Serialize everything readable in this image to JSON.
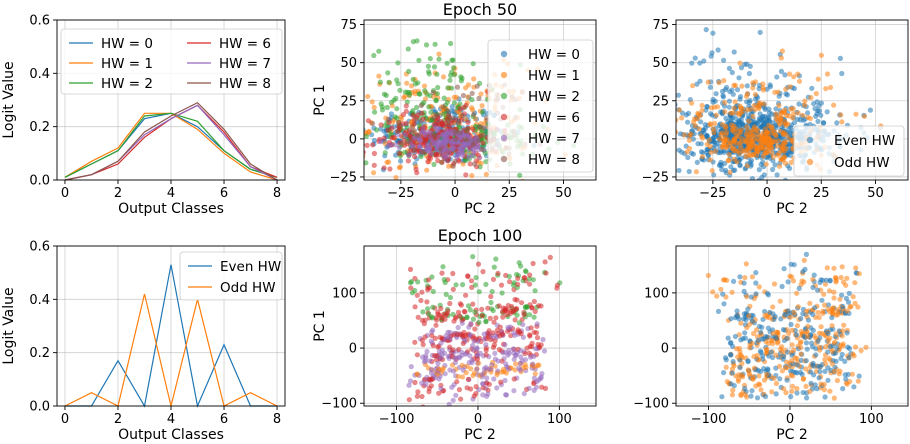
{
  "colors": {
    "hw0": "#1f77b4",
    "hw1": "#ff7f0e",
    "hw2": "#2ca02c",
    "hw6": "#d62728",
    "hw7": "#9467bd",
    "hw8": "#8c564b",
    "even": "#1f77b4",
    "odd": "#ff7f0e"
  },
  "chart_data": [
    {
      "id": "tl",
      "type": "line",
      "title": "",
      "xlabel": "Output Classes",
      "ylabel": "Logit Value",
      "xlim": [
        -0.3,
        8.3
      ],
      "ylim": [
        0,
        0.6
      ],
      "xticks": [
        0,
        2,
        4,
        6,
        8
      ],
      "xtick_labels": [
        "0",
        "2",
        "4",
        "6",
        "8"
      ],
      "yticks": [
        0,
        0.2,
        0.4,
        0.6
      ],
      "ytick_labels": [
        "0.0",
        "0.2",
        "0.4",
        "0.6"
      ],
      "grid": true,
      "legend": "top",
      "legend_columns": 2,
      "x": [
        0,
        1,
        2,
        3,
        4,
        5,
        6,
        7,
        8
      ],
      "series": [
        {
          "name": "HW = 0",
          "color_key": "hw0",
          "values": [
            0.01,
            0.06,
            0.11,
            0.23,
            0.25,
            0.2,
            0.11,
            0.04,
            0.01
          ]
        },
        {
          "name": "HW = 1",
          "color_key": "hw1",
          "values": [
            0.01,
            0.07,
            0.12,
            0.25,
            0.25,
            0.19,
            0.1,
            0.03,
            0.0
          ]
        },
        {
          "name": "HW = 2",
          "color_key": "hw2",
          "values": [
            0.01,
            0.06,
            0.11,
            0.24,
            0.25,
            0.22,
            0.11,
            0.04,
            0.01
          ]
        },
        {
          "name": "HW = 6",
          "color_key": "hw6",
          "values": [
            0.0,
            0.02,
            0.06,
            0.16,
            0.23,
            0.28,
            0.18,
            0.05,
            0.01
          ]
        },
        {
          "name": "HW = 7",
          "color_key": "hw7",
          "values": [
            0.0,
            0.02,
            0.07,
            0.17,
            0.23,
            0.28,
            0.17,
            0.05,
            0.0
          ]
        },
        {
          "name": "HW = 8",
          "color_key": "hw8",
          "values": [
            0.0,
            0.02,
            0.07,
            0.18,
            0.24,
            0.29,
            0.19,
            0.06,
            0.0
          ]
        }
      ]
    },
    {
      "id": "tm",
      "type": "scatter",
      "title": "Epoch 50",
      "xlabel": "PC 2",
      "ylabel": "PC 1",
      "xlim": [
        -42,
        65
      ],
      "ylim": [
        -27,
        78
      ],
      "xticks": [
        -25,
        0,
        25,
        50
      ],
      "xtick_labels": [
        "−25",
        "0",
        "25",
        "50"
      ],
      "yticks": [
        -25,
        0,
        25,
        50,
        75
      ],
      "ytick_labels": [
        "−25",
        "0",
        "25",
        "50",
        "75"
      ],
      "grid": true,
      "legend": "right",
      "series": [
        {
          "name": "HW = 0",
          "color_key": "hw0"
        },
        {
          "name": "HW = 1",
          "color_key": "hw1"
        },
        {
          "name": "HW = 2",
          "color_key": "hw2"
        },
        {
          "name": "HW = 6",
          "color_key": "hw6"
        },
        {
          "name": "HW = 7",
          "color_key": "hw7"
        },
        {
          "name": "HW = 8",
          "color_key": "hw8"
        }
      ]
    },
    {
      "id": "tr",
      "type": "scatter",
      "title": "",
      "xlabel": "PC 2",
      "ylabel": "",
      "xlim": [
        -42,
        65
      ],
      "ylim": [
        -27,
        78
      ],
      "xticks": [
        -25,
        0,
        25,
        50
      ],
      "xtick_labels": [
        "−25",
        "0",
        "25",
        "50"
      ],
      "yticks": [
        -25,
        0,
        25,
        50,
        75
      ],
      "ytick_labels": [
        "−25",
        "0",
        "25",
        "50",
        "75"
      ],
      "grid": true,
      "legend": "bottom-right",
      "series": [
        {
          "name": "Even HW",
          "color_key": "even"
        },
        {
          "name": "Odd HW",
          "color_key": "odd"
        }
      ]
    },
    {
      "id": "bl",
      "type": "line",
      "title": "",
      "xlabel": "Output Classes",
      "ylabel": "Logit Value",
      "xlim": [
        -0.3,
        8.3
      ],
      "ylim": [
        0,
        0.6
      ],
      "xticks": [
        0,
        2,
        4,
        6,
        8
      ],
      "xtick_labels": [
        "0",
        "2",
        "4",
        "6",
        "8"
      ],
      "yticks": [
        0,
        0.2,
        0.4,
        0.6
      ],
      "ytick_labels": [
        "0.0",
        "0.2",
        "0.4",
        "0.6"
      ],
      "grid": true,
      "legend": "top-right",
      "legend_columns": 1,
      "x": [
        0,
        1,
        2,
        3,
        4,
        5,
        6,
        7,
        8
      ],
      "series": [
        {
          "name": "Even HW",
          "color_key": "even",
          "values": [
            0.0,
            0.0,
            0.17,
            0.0,
            0.53,
            0.0,
            0.23,
            0.0,
            0.0
          ]
        },
        {
          "name": "Odd HW",
          "color_key": "odd",
          "values": [
            0.0,
            0.05,
            0.0,
            0.42,
            0.0,
            0.4,
            0.0,
            0.05,
            0.0
          ]
        }
      ]
    },
    {
      "id": "bm",
      "type": "scatter",
      "title": "Epoch 100",
      "xlabel": "PC 2",
      "ylabel": "PC 1",
      "xlim": [
        -140,
        145
      ],
      "ylim": [
        -105,
        185
      ],
      "xticks": [
        -100,
        0,
        100
      ],
      "xtick_labels": [
        "−100",
        "0",
        "100"
      ],
      "yticks": [
        -100,
        0,
        100
      ],
      "ytick_labels": [
        "−100",
        "0",
        "100"
      ],
      "grid": true
    },
    {
      "id": "br",
      "type": "scatter",
      "title": "",
      "xlabel": "PC 2",
      "ylabel": "",
      "xlim": [
        -140,
        145
      ],
      "ylim": [
        -105,
        185
      ],
      "xticks": [
        -100,
        0,
        100
      ],
      "xtick_labels": [
        "−100",
        "0",
        "100"
      ],
      "yticks": [
        -100,
        0,
        100
      ],
      "ytick_labels": [
        "−100",
        "0",
        "100"
      ],
      "grid": true
    }
  ]
}
